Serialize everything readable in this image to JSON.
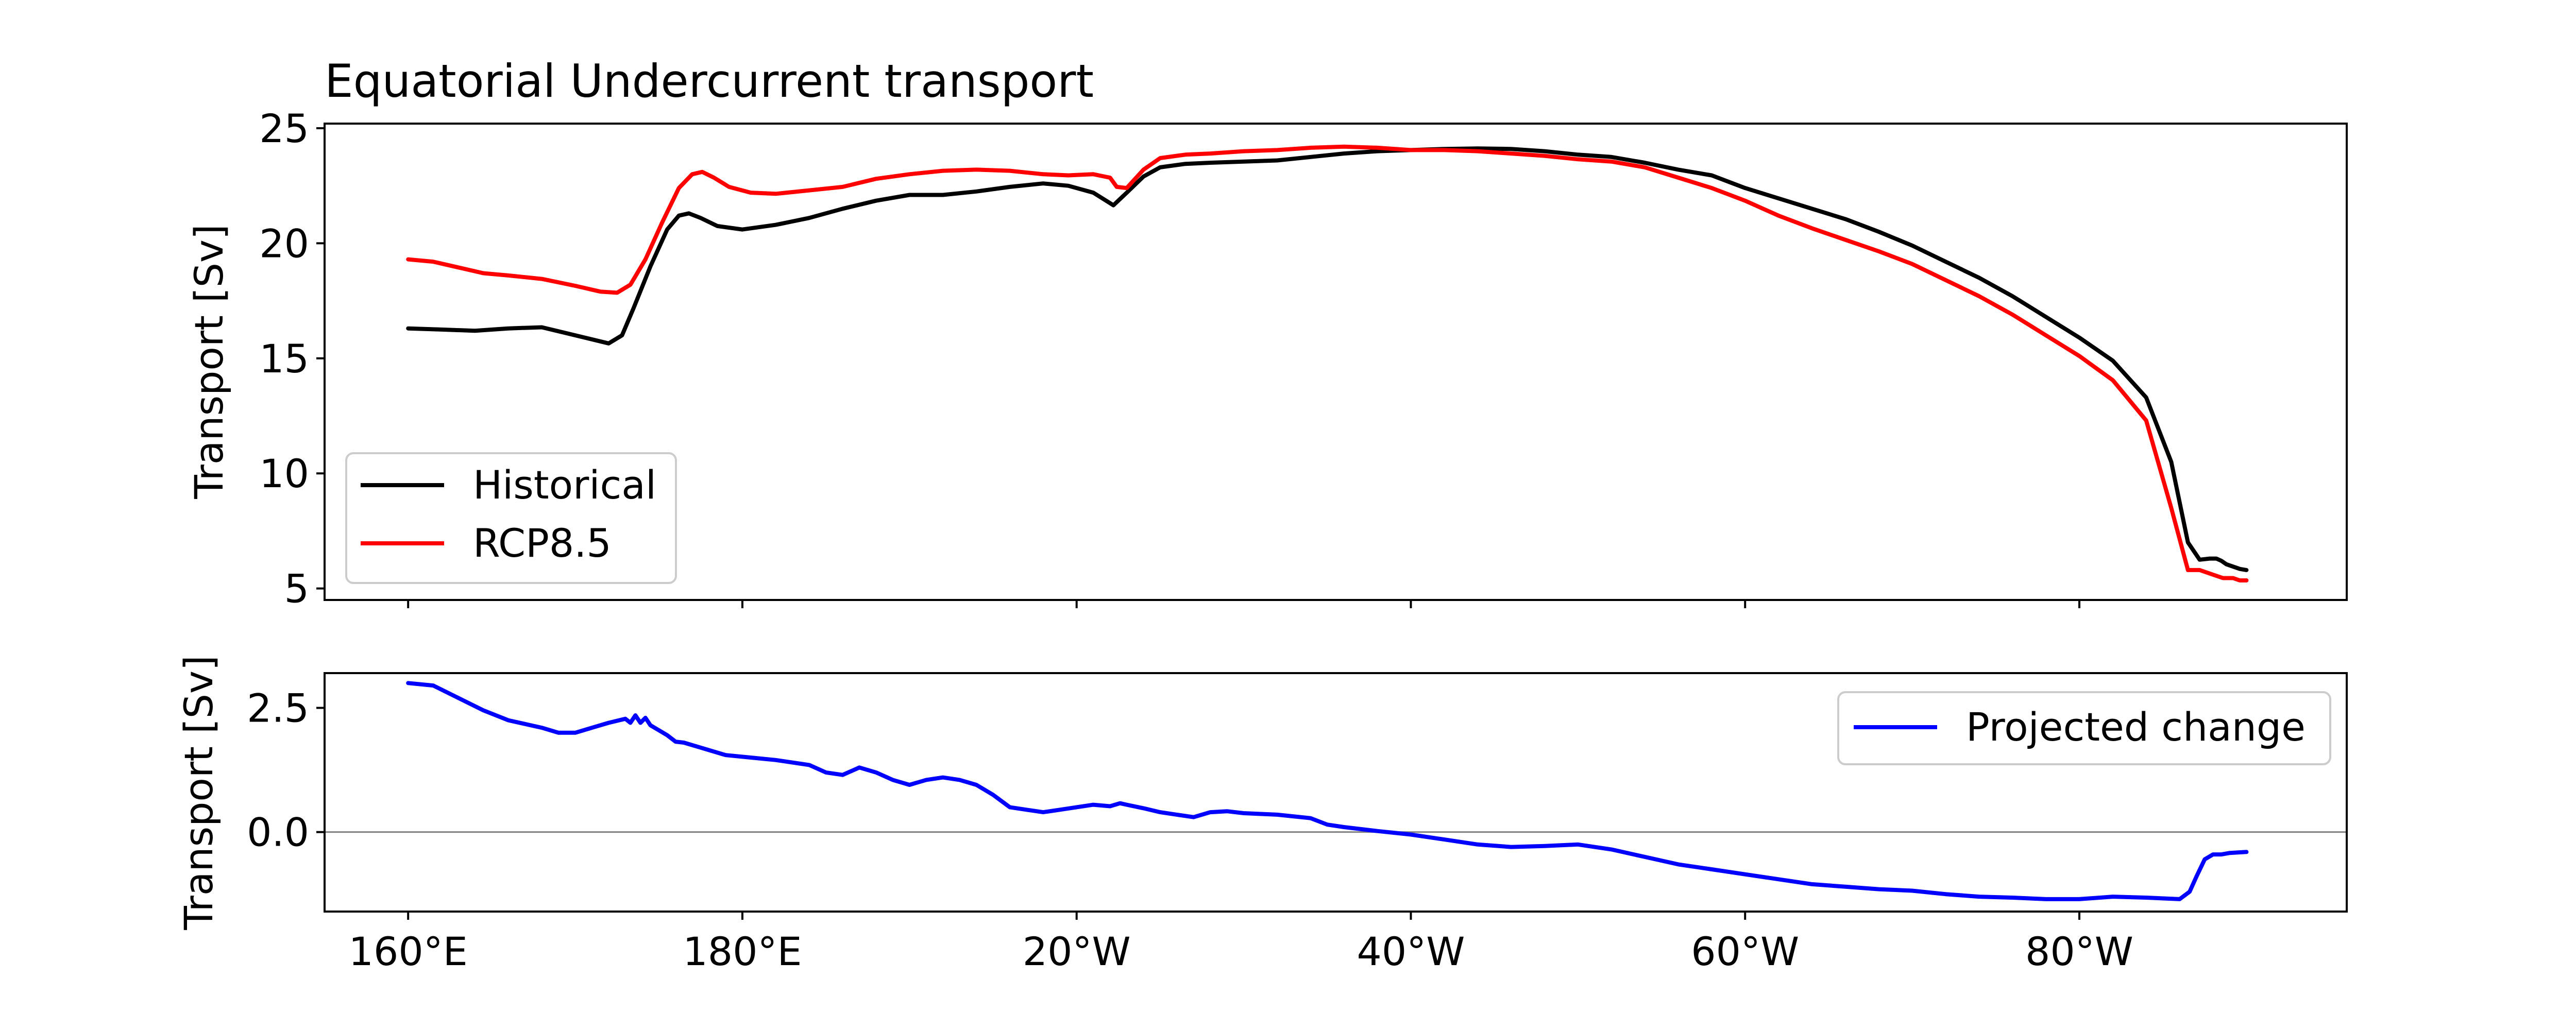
{
  "chart_data": [
    {
      "type": "line",
      "title": "Equatorial Undercurrent transport",
      "ylabel": "Transport [Sv]",
      "xlabel": "",
      "x_unit": "degrees east",
      "xlim": [
        155,
        276
      ],
      "ylim": [
        4.5,
        25.2
      ],
      "yticks": [
        5,
        10,
        15,
        20,
        25
      ],
      "ytick_labels": [
        "5",
        "10",
        "15",
        "20",
        "25"
      ],
      "xticks": [
        160,
        180,
        200,
        220,
        240,
        260
      ],
      "grid": false,
      "legend": "lower-left",
      "series": [
        {
          "name": "Historical",
          "color": "#000000",
          "x": [
            160,
            162,
            164,
            166,
            168,
            170,
            172,
            172.8,
            173.5,
            174.5,
            175.5,
            176.2,
            176.8,
            177.5,
            178.5,
            180,
            182,
            184,
            186,
            188,
            190,
            192,
            194,
            196,
            198,
            199.5,
            201,
            202.2,
            203,
            204,
            205,
            206.5,
            208,
            210,
            212,
            214,
            216,
            218,
            220,
            222,
            224,
            226,
            228,
            230,
            232,
            234,
            236,
            238,
            240,
            242,
            244,
            246,
            248,
            250,
            252,
            254,
            256,
            258,
            260,
            262,
            264,
            265.5,
            266.5,
            267.2,
            267.8,
            268.2,
            268.5,
            268.8,
            269.2,
            269.6,
            270
          ],
          "values": [
            16.3,
            16.25,
            16.2,
            16.3,
            16.35,
            16.0,
            15.65,
            16.0,
            17.2,
            19.0,
            20.6,
            21.2,
            21.3,
            21.1,
            20.75,
            20.6,
            20.8,
            21.1,
            21.5,
            21.85,
            22.1,
            22.1,
            22.25,
            22.45,
            22.6,
            22.5,
            22.2,
            21.65,
            22.2,
            22.9,
            23.3,
            23.45,
            23.5,
            23.55,
            23.6,
            23.75,
            23.9,
            24.0,
            24.05,
            24.1,
            24.12,
            24.1,
            24.0,
            23.85,
            23.75,
            23.5,
            23.2,
            22.95,
            22.4,
            21.95,
            21.5,
            21.05,
            20.5,
            19.9,
            19.2,
            18.5,
            17.7,
            16.8,
            15.9,
            14.9,
            13.3,
            10.5,
            7.0,
            6.25,
            6.3,
            6.3,
            6.2,
            6.05,
            5.95,
            5.85,
            5.8
          ]
        },
        {
          "name": "RCP8.5",
          "color": "#ff0000",
          "x": [
            160,
            161.5,
            163,
            164.5,
            166,
            168,
            170,
            171.5,
            172.5,
            173.3,
            174.2,
            175.2,
            176.2,
            177,
            177.6,
            178.3,
            179.2,
            180.5,
            182,
            184,
            186,
            188,
            190,
            192,
            194,
            196,
            198,
            199.5,
            201,
            202,
            202.4,
            203,
            204,
            205,
            206.5,
            208,
            210,
            212,
            214,
            216,
            218,
            220,
            222,
            224,
            226,
            228,
            230,
            232,
            234,
            236,
            238,
            240,
            242,
            244,
            246,
            248,
            250,
            252,
            254,
            256,
            258,
            260,
            262,
            264,
            265.5,
            266.5,
            267.2,
            267.8,
            268.2,
            268.6,
            269.2,
            269.6,
            270
          ],
          "values": [
            19.3,
            19.2,
            18.95,
            18.7,
            18.6,
            18.45,
            18.15,
            17.9,
            17.85,
            18.2,
            19.3,
            20.9,
            22.4,
            23.0,
            23.1,
            22.85,
            22.45,
            22.2,
            22.15,
            22.3,
            22.45,
            22.8,
            23.0,
            23.15,
            23.2,
            23.15,
            23.0,
            22.95,
            23.0,
            22.85,
            22.45,
            22.4,
            23.2,
            23.7,
            23.85,
            23.9,
            24.0,
            24.05,
            24.15,
            24.2,
            24.15,
            24.05,
            24.05,
            24.0,
            23.9,
            23.8,
            23.65,
            23.55,
            23.3,
            22.85,
            22.4,
            21.85,
            21.2,
            20.65,
            20.15,
            19.65,
            19.1,
            18.4,
            17.7,
            16.9,
            16.0,
            15.1,
            14.05,
            12.3,
            8.5,
            5.8,
            5.8,
            5.65,
            5.55,
            5.45,
            5.45,
            5.35,
            5.35
          ]
        }
      ]
    },
    {
      "type": "line",
      "ylabel": "Transport [Sv]",
      "xlabel": "",
      "x_unit": "degrees east",
      "xlim": [
        155,
        276
      ],
      "ylim": [
        -1.6,
        3.2
      ],
      "yticks": [
        0.0,
        2.5
      ],
      "ytick_labels": [
        "0.0",
        "2.5"
      ],
      "xticks": [
        160,
        180,
        200,
        220,
        240,
        260
      ],
      "xtick_labels": [
        "160°E",
        "180°E",
        "20°W",
        "40°W",
        "60°W",
        "80°W"
      ],
      "zero_line": true,
      "grid": false,
      "legend": "upper-right",
      "series": [
        {
          "name": "Projected change",
          "color": "#0000ff",
          "x": [
            160,
            161.5,
            163,
            164.5,
            166,
            168,
            169,
            170,
            171,
            172,
            173,
            173.3,
            173.6,
            173.9,
            174.2,
            174.5,
            175,
            175.5,
            176,
            176.5,
            177.5,
            179,
            180.5,
            182,
            184,
            185,
            186,
            187,
            188,
            189,
            190,
            191,
            192,
            193,
            194,
            195,
            196,
            197,
            198,
            199,
            200,
            201,
            202,
            202.6,
            203,
            204,
            205,
            206,
            207,
            208,
            209,
            210,
            212,
            214,
            215,
            216,
            218,
            220,
            222,
            224,
            226,
            228,
            230,
            232,
            234,
            236,
            238,
            240,
            242,
            244,
            246,
            248,
            250,
            252,
            254,
            256,
            258,
            260,
            262,
            264,
            266,
            266.6,
            267,
            267.5,
            268,
            268.5,
            269,
            270
          ],
          "values": [
            3.0,
            2.95,
            2.7,
            2.45,
            2.25,
            2.1,
            2.0,
            2.0,
            2.1,
            2.2,
            2.28,
            2.2,
            2.35,
            2.2,
            2.3,
            2.15,
            2.05,
            1.95,
            1.82,
            1.8,
            1.7,
            1.55,
            1.5,
            1.45,
            1.35,
            1.2,
            1.15,
            1.3,
            1.2,
            1.05,
            0.95,
            1.05,
            1.1,
            1.05,
            0.95,
            0.75,
            0.5,
            0.45,
            0.4,
            0.45,
            0.5,
            0.55,
            0.52,
            0.58,
            0.55,
            0.48,
            0.4,
            0.35,
            0.3,
            0.4,
            0.42,
            0.38,
            0.35,
            0.28,
            0.15,
            0.1,
            0.02,
            -0.05,
            -0.15,
            -0.25,
            -0.3,
            -0.28,
            -0.25,
            -0.35,
            -0.5,
            -0.65,
            -0.75,
            -0.85,
            -0.95,
            -1.05,
            -1.1,
            -1.15,
            -1.18,
            -1.25,
            -1.3,
            -1.32,
            -1.35,
            -1.35,
            -1.3,
            -1.32,
            -1.35,
            -1.2,
            -0.9,
            -0.55,
            -0.45,
            -0.45,
            -0.42,
            -0.4
          ]
        }
      ]
    }
  ]
}
